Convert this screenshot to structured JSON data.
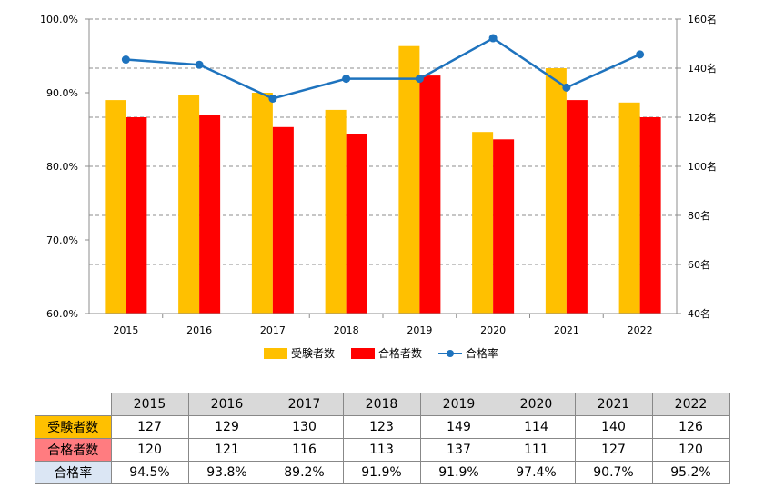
{
  "chart_data": {
    "type": "bar",
    "categories": [
      "2015",
      "2016",
      "2017",
      "2018",
      "2019",
      "2020",
      "2021",
      "2022"
    ],
    "series": [
      {
        "name": "受験者数",
        "kind": "bar",
        "axis": "right",
        "color": "#ffc000",
        "values": [
          127,
          129,
          130,
          123,
          149,
          114,
          140,
          126
        ]
      },
      {
        "name": "合格者数",
        "kind": "bar",
        "axis": "right",
        "color": "#ff0000",
        "values": [
          120,
          121,
          116,
          113,
          137,
          111,
          127,
          120
        ]
      },
      {
        "name": "合格率",
        "kind": "line",
        "axis": "left",
        "color": "#1e73be",
        "values": [
          94.5,
          93.8,
          89.2,
          91.9,
          91.9,
          97.4,
          90.7,
          95.2
        ]
      }
    ],
    "left_axis": {
      "min": 60,
      "max": 100,
      "ticks": [
        "60.0%",
        "70.0%",
        "80.0%",
        "90.0%",
        "100.0%"
      ]
    },
    "right_axis": {
      "min": 40,
      "max": 160,
      "ticks": [
        "40名",
        "60名",
        "80名",
        "100名",
        "120名",
        "140名",
        "160名"
      ]
    },
    "grid": "dashed-horizontal",
    "legend_position": "bottom"
  },
  "table": {
    "years": [
      "2015",
      "2016",
      "2017",
      "2018",
      "2019",
      "2020",
      "2021",
      "2022"
    ],
    "rows": [
      {
        "label": "受験者数",
        "values": [
          "127",
          "129",
          "130",
          "123",
          "149",
          "114",
          "140",
          "126"
        ]
      },
      {
        "label": "合格者数",
        "values": [
          "120",
          "121",
          "116",
          "113",
          "137",
          "111",
          "127",
          "120"
        ]
      },
      {
        "label": "合格率",
        "values": [
          "94.5%",
          "93.8%",
          "89.2%",
          "91.9%",
          "91.9%",
          "97.4%",
          "90.7%",
          "95.2%"
        ]
      }
    ]
  }
}
